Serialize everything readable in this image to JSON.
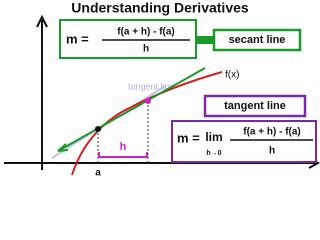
{
  "title": "Understanding Derivatives",
  "secant_formula": {
    "lhs": "m =",
    "numerator": "f(a + h) - f(a)",
    "denominator": "h"
  },
  "secant_label": "secant line",
  "curve_label": "f(x)",
  "tangent_hint": "tangent line",
  "tangent_label": "tangent line",
  "tangent_formula": {
    "lhs": "m =",
    "lim": "lim",
    "lim_sub": "h→0",
    "numerator": "f(a + h) - f(a)",
    "denominator": "h"
  },
  "x_label": "a",
  "h_label": "h"
}
